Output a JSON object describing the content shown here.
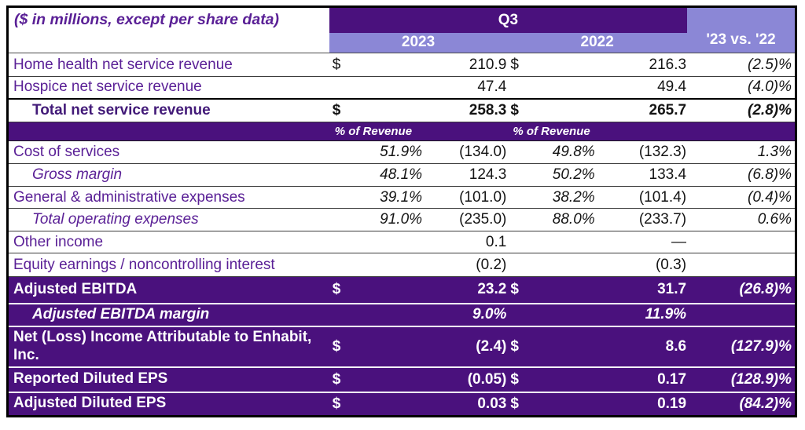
{
  "meta": {
    "description": "Quarterly financial results summary table, Q3 2023 vs Q3 2022"
  },
  "colors": {
    "dark_purple_band": "#4a117d",
    "light_purple_band": "#8b87d6",
    "label_purple": "#5a2096",
    "total_label_purple": "#421a78",
    "value_black": "#141414"
  },
  "header": {
    "units_note": "($ in millions, except per share data)",
    "quarter": "Q3",
    "col_2023": "2023",
    "col_2022": "2022",
    "change": "'23 vs. '22"
  },
  "rows": [
    {
      "kind": "data",
      "label": "Home health net service revenue",
      "d1": "$",
      "p1": "",
      "v1": "210.9",
      "d2": "$",
      "p2": "",
      "v2": "216.3",
      "chg": "(2.5)%"
    },
    {
      "kind": "data",
      "label": "Hospice net service revenue",
      "d1": "",
      "p1": "",
      "v1": "47.4",
      "d2": "",
      "p2": "",
      "v2": "49.4",
      "chg": "(4.0)%"
    },
    {
      "kind": "total",
      "label": "Total net service revenue",
      "d1": "$",
      "p1": "",
      "v1": "258.3",
      "d2": "$",
      "p2": "",
      "v2": "265.7",
      "chg": "(2.8)%"
    },
    {
      "kind": "band",
      "left": "% of Revenue",
      "right": "% of Revenue"
    },
    {
      "kind": "data",
      "label": "Cost of services",
      "d1": "",
      "p1": "51.9%",
      "v1": "(134.0)",
      "d2": "",
      "p2": "49.8%",
      "v2": "(132.3)",
      "chg": "1.3%"
    },
    {
      "kind": "data indent",
      "label": "Gross margin",
      "d1": "",
      "p1": "48.1%",
      "v1": "124.3",
      "d2": "",
      "p2": "50.2%",
      "v2": "133.4",
      "chg": "(6.8)%"
    },
    {
      "kind": "data",
      "label": "General & administrative expenses",
      "d1": "",
      "p1": "39.1%",
      "v1": "(101.0)",
      "d2": "",
      "p2": "38.2%",
      "v2": "(101.4)",
      "chg": "(0.4)%"
    },
    {
      "kind": "data indent",
      "label": "Total operating expenses",
      "d1": "",
      "p1": "91.0%",
      "v1": "(235.0)",
      "d2": "",
      "p2": "88.0%",
      "v2": "(233.7)",
      "chg": "0.6%"
    },
    {
      "kind": "data",
      "label": "Other income",
      "d1": "",
      "p1": "",
      "v1": "0.1",
      "d2": "",
      "p2": "",
      "v2": "—",
      "chg": ""
    },
    {
      "kind": "data",
      "label": "Equity earnings / noncontrolling interest",
      "d1": "",
      "p1": "",
      "v1": "(0.2)",
      "d2": "",
      "p2": "",
      "v2": "(0.3)",
      "chg": ""
    },
    {
      "kind": "dark",
      "label": "Adjusted EBITDA",
      "d1": "$",
      "p1": "",
      "v1": "23.2",
      "d2": "$",
      "p2": "",
      "v2": "31.7",
      "chg": "(26.8)%"
    },
    {
      "kind": "dark indent margin",
      "label": "Adjusted EBITDA margin",
      "d1": "",
      "p1": "",
      "v1": "9.0%",
      "d2": "",
      "p2": "",
      "v2": "11.9%",
      "chg": ""
    },
    {
      "kind": "dark",
      "label": "Net (Loss) Income Attributable to Enhabit, Inc.",
      "d1": "$",
      "p1": "",
      "v1": "(2.4)",
      "d2": "$",
      "p2": "",
      "v2": "8.6",
      "chg": "(127.9)%"
    },
    {
      "kind": "dark",
      "label": "Reported Diluted EPS",
      "d1": "$",
      "p1": "",
      "v1": "(0.05)",
      "d2": "$",
      "p2": "",
      "v2": "0.17",
      "chg": "(128.9)%"
    },
    {
      "kind": "dark",
      "label": "Adjusted Diluted EPS",
      "d1": "$",
      "p1": "",
      "v1": "0.03",
      "d2": "$",
      "p2": "",
      "v2": "0.19",
      "chg": "(84.2)%"
    }
  ]
}
